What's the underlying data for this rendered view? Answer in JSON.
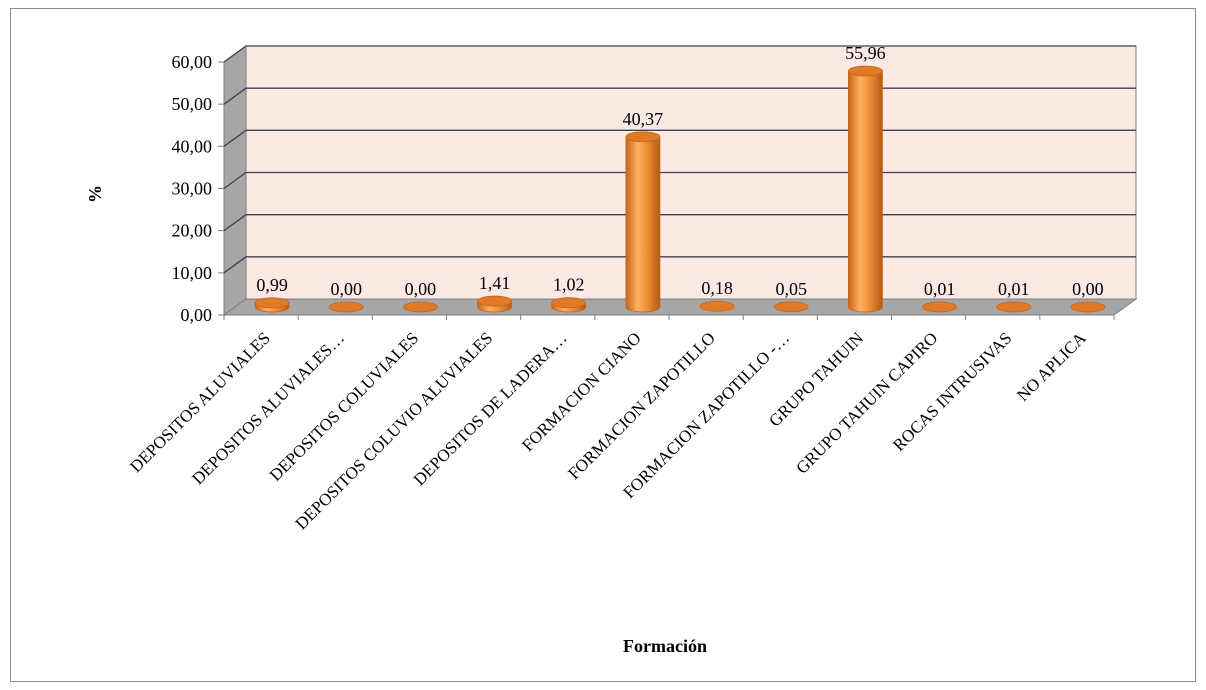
{
  "chart_data": {
    "type": "bar",
    "style": "3d-cylinder",
    "categories": [
      "DEPOSITOS ALUVIALES",
      "DEPOSITOS ALUVIALES…",
      "DEPOSITOS COLUVIALES",
      "DEPOSITOS COLUVIO ALUVIALES",
      "DEPOSITOS DE LADERA…",
      "FORMACION CIANO",
      "FORMACION ZAPOTILLO",
      "FORMACION ZAPOTILLO -…",
      "GRUPO TAHUIN",
      "GRUPO TAHUIN CAPIRO",
      "ROCAS INTRUSIVAS",
      "NO APLICA"
    ],
    "values": [
      0.99,
      0.0,
      0.0,
      1.41,
      1.02,
      40.37,
      0.18,
      0.05,
      55.96,
      0.01,
      0.01,
      0.0
    ],
    "data_labels": [
      "0,99",
      "0,00",
      "0,00",
      "1,41",
      "1,02",
      "40,37",
      "0,18",
      "0,05",
      "55,96",
      "0,01",
      "0,01",
      "0,00"
    ],
    "yticks": [
      "0,00",
      "10,00",
      "20,00",
      "30,00",
      "40,00",
      "50,00",
      "60,00"
    ],
    "ylim": [
      0,
      60
    ],
    "xlabel": "Formación",
    "ylabel": "%",
    "grid": true,
    "legend": "none",
    "colors": {
      "bar": "#f0903a",
      "bar_dark": "#c8641a",
      "bar_top": "#e07a26",
      "wall": "#fbe9e3",
      "side_wall": "#a6a6a6",
      "floor": "#a6a6a6",
      "grid": "#404050"
    }
  }
}
